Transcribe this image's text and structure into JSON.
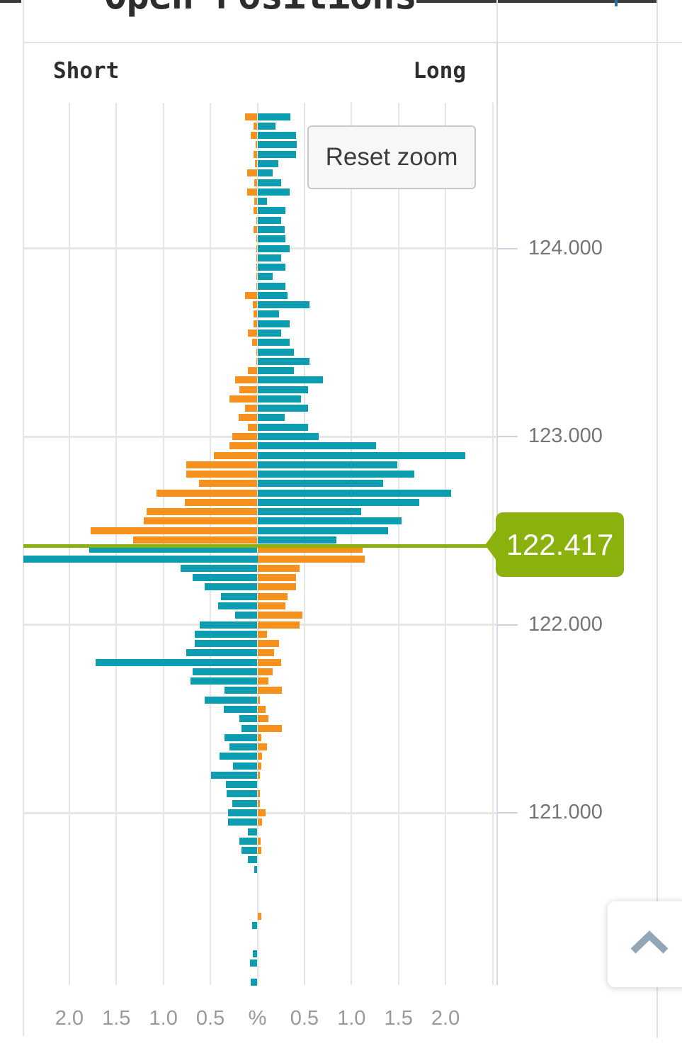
{
  "page": {
    "title": "Open Positions"
  },
  "chart": {
    "left_header": "Short",
    "right_header": "Long",
    "reset_button": "Reset zoom",
    "price_flag": "122.417"
  },
  "scroll_top": {
    "icon": "chevron-up"
  },
  "chart_data": {
    "type": "bar",
    "orientation": "horizontal-pyramid",
    "title": "Open Positions",
    "xlabel_unit": "%",
    "x_ticks": [
      "2.0",
      "1.5",
      "1.0",
      "0.5",
      "%",
      "0.5",
      "1.0",
      "1.5",
      "2.0"
    ],
    "x_tick_values": [
      -2.0,
      -1.5,
      -1.0,
      -0.5,
      0,
      0.5,
      1.0,
      1.5,
      2.0
    ],
    "x_range_pct": [
      -2.52,
      2.55
    ],
    "y_ticks": [
      "124.000",
      "123.000",
      "122.000",
      "121.000"
    ],
    "y_tick_values": [
      124.0,
      123.0,
      122.0,
      121.0
    ],
    "current_price": 122.417,
    "legend": {
      "left": "Short",
      "right": "Long"
    },
    "colors": {
      "teal": "#0c9db0",
      "orange": "#f6911e",
      "price_green": "#8bb10c",
      "grid": "#e6e6e6",
      "axis": "#c9d3e0"
    },
    "rows": [
      [
        124.7,
        0.13,
        0.35
      ],
      [
        124.65,
        0.045,
        0.19
      ],
      [
        124.6,
        0.07,
        0.41
      ],
      [
        124.55,
        0.02,
        0.42
      ],
      [
        124.5,
        0.04,
        0.41
      ],
      [
        124.45,
        0.025,
        0.225
      ],
      [
        124.4,
        0.11,
        0.16
      ],
      [
        124.35,
        0.035,
        0.25
      ],
      [
        124.3,
        0.11,
        0.345
      ],
      [
        124.25,
        0.035,
        0.1
      ],
      [
        124.2,
        0.04,
        0.295
      ],
      [
        124.15,
        0.01,
        0.25
      ],
      [
        124.1,
        0.04,
        0.29
      ],
      [
        124.05,
        0.015,
        0.3
      ],
      [
        124.0,
        0.015,
        0.345
      ],
      [
        123.95,
        0.01,
        0.25
      ],
      [
        123.9,
        0.01,
        0.3
      ],
      [
        123.85,
        0.01,
        0.16
      ],
      [
        123.8,
        0.01,
        0.3
      ],
      [
        123.75,
        0.13,
        0.32
      ],
      [
        123.7,
        0.05,
        0.55
      ],
      [
        123.65,
        0.045,
        0.23
      ],
      [
        123.6,
        0.045,
        0.345
      ],
      [
        123.55,
        0.105,
        0.25
      ],
      [
        123.5,
        0.055,
        0.345
      ],
      [
        123.45,
        0.015,
        0.39
      ],
      [
        123.4,
        0.015,
        0.55
      ],
      [
        123.35,
        0.105,
        0.39
      ],
      [
        123.3,
        0.24,
        0.7
      ],
      [
        123.25,
        0.19,
        0.54
      ],
      [
        123.2,
        0.3,
        0.46
      ],
      [
        123.15,
        0.13,
        0.54
      ],
      [
        123.1,
        0.2,
        0.29
      ],
      [
        123.05,
        0.105,
        0.54
      ],
      [
        123.0,
        0.27,
        0.65
      ],
      [
        122.95,
        0.3,
        1.26
      ],
      [
        122.9,
        0.46,
        2.21
      ],
      [
        122.85,
        0.76,
        1.49
      ],
      [
        122.8,
        0.76,
        1.67
      ],
      [
        122.75,
        0.62,
        1.34
      ],
      [
        122.7,
        1.07,
        2.06
      ],
      [
        122.65,
        0.77,
        1.72
      ],
      [
        122.6,
        1.18,
        1.1
      ],
      [
        122.55,
        1.21,
        1.53
      ],
      [
        122.5,
        1.77,
        1.39
      ],
      [
        122.45,
        1.32,
        0.84
      ],
      [
        122.4,
        1.79,
        1.12
      ],
      [
        122.35,
        2.49,
        1.14
      ],
      [
        122.3,
        0.82,
        0.45
      ],
      [
        122.25,
        0.69,
        0.41
      ],
      [
        122.2,
        0.56,
        0.41
      ],
      [
        122.15,
        0.39,
        0.32
      ],
      [
        122.1,
        0.42,
        0.3
      ],
      [
        122.05,
        0.24,
        0.48
      ],
      [
        122.0,
        0.61,
        0.45
      ],
      [
        121.95,
        0.67,
        0.1
      ],
      [
        121.9,
        0.67,
        0.23
      ],
      [
        121.85,
        0.76,
        0.18
      ],
      [
        121.8,
        1.72,
        0.25
      ],
      [
        121.75,
        0.69,
        0.16
      ],
      [
        121.7,
        0.71,
        0.12
      ],
      [
        121.65,
        0.35,
        0.26
      ],
      [
        121.6,
        0.56,
        0.03
      ],
      [
        121.55,
        0.36,
        0.09
      ],
      [
        121.5,
        0.19,
        0.12
      ],
      [
        121.45,
        0.17,
        0.26
      ],
      [
        121.4,
        0.35,
        0.045
      ],
      [
        121.35,
        0.3,
        0.1
      ],
      [
        121.3,
        0.4,
        0.05
      ],
      [
        121.25,
        0.26,
        0.045
      ],
      [
        121.2,
        0.49,
        0.03
      ],
      [
        121.15,
        0.335,
        0.0
      ],
      [
        121.1,
        0.33,
        0.025
      ],
      [
        121.05,
        0.265,
        0.03
      ],
      [
        121.0,
        0.31,
        0.09
      ],
      [
        120.95,
        0.31,
        0.05
      ],
      [
        120.9,
        0.1,
        0.0
      ],
      [
        120.85,
        0.19,
        0.035
      ],
      [
        120.8,
        0.17,
        0.04
      ],
      [
        120.75,
        0.1,
        0.0
      ],
      [
        120.7,
        0.035,
        0.0
      ],
      [
        120.45,
        0.0,
        0.045
      ],
      [
        120.4,
        0.055,
        0.0
      ],
      [
        120.25,
        0.05,
        0.0
      ],
      [
        120.2,
        0.08,
        0.0
      ],
      [
        120.1,
        0.07,
        0.0
      ]
    ]
  }
}
